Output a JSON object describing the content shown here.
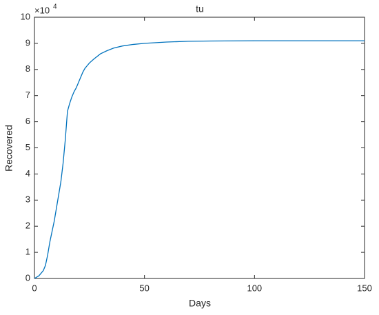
{
  "chart_data": {
    "type": "line",
    "title": "tu",
    "x_label": "Days",
    "y_label": "Recovered",
    "y_exponent": {
      "base": "×10",
      "power": "4"
    },
    "x": [
      0,
      1,
      2,
      3,
      4,
      5,
      6,
      7,
      8,
      9,
      10,
      11,
      12,
      13,
      14,
      15,
      16,
      17,
      18,
      19,
      20,
      21,
      22,
      23,
      24,
      25,
      27,
      30,
      33,
      36,
      40,
      45,
      50,
      60,
      70,
      80,
      100,
      150
    ],
    "series": [
      {
        "name": "Recovered",
        "color": "#0072bd",
        "values": [
          0,
          0.05,
          0.1,
          0.2,
          0.3,
          0.5,
          0.9,
          1.4,
          1.8,
          2.2,
          2.7,
          3.2,
          3.7,
          4.4,
          5.3,
          6.4,
          6.7,
          6.95,
          7.15,
          7.3,
          7.5,
          7.7,
          7.9,
          8.05,
          8.15,
          8.25,
          8.4,
          8.6,
          8.72,
          8.82,
          8.9,
          8.96,
          9.0,
          9.05,
          9.08,
          9.09,
          9.1,
          9.1
        ]
      }
    ],
    "xlim": [
      0,
      150
    ],
    "xticks": [
      0,
      50,
      100,
      150
    ],
    "ylim": [
      0,
      10
    ],
    "yticks": [
      0,
      1,
      2,
      3,
      4,
      5,
      6,
      7,
      8,
      9,
      10
    ],
    "grid": false
  }
}
